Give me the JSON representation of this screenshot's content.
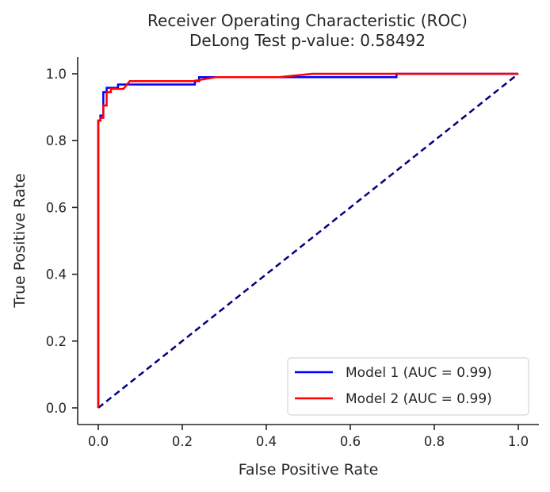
{
  "chart_data": {
    "type": "line",
    "title": "Receiver Operating Characteristic (ROC)",
    "subtitle": "DeLong Test p-value: 0.58492",
    "xlabel": "False Positive Rate",
    "ylabel": "True Positive Rate",
    "xlim": [
      -0.05,
      1.05
    ],
    "ylim": [
      -0.05,
      1.05
    ],
    "xticks": [
      0.0,
      0.2,
      0.4,
      0.6,
      0.8,
      1.0
    ],
    "yticks": [
      0.0,
      0.2,
      0.4,
      0.6,
      0.8,
      1.0
    ],
    "xtick_labels": [
      "0.0",
      "0.2",
      "0.4",
      "0.6",
      "0.8",
      "1.0"
    ],
    "ytick_labels": [
      "0.0",
      "0.2",
      "0.4",
      "0.6",
      "0.8",
      "1.0"
    ],
    "grid": false,
    "legend_position": "lower-right",
    "series": [
      {
        "name": "Model 1 (AUC = 0.99)",
        "color": "#0000ff",
        "points": [
          [
            0,
            0
          ],
          [
            0,
            0.86
          ],
          [
            0.005,
            0.86
          ],
          [
            0.005,
            0.875
          ],
          [
            0.012,
            0.875
          ],
          [
            0.012,
            0.945
          ],
          [
            0.02,
            0.945
          ],
          [
            0.02,
            0.958
          ],
          [
            0.047,
            0.958
          ],
          [
            0.047,
            0.968
          ],
          [
            0.23,
            0.968
          ],
          [
            0.23,
            0.978
          ],
          [
            0.24,
            0.978
          ],
          [
            0.24,
            0.99
          ],
          [
            0.71,
            0.99
          ],
          [
            0.71,
            1.0
          ],
          [
            1.0,
            1.0
          ]
        ]
      },
      {
        "name": "Model 2 (AUC = 0.99)",
        "color": "#ff0000",
        "points": [
          [
            0,
            0
          ],
          [
            0,
            0.86
          ],
          [
            0.005,
            0.86
          ],
          [
            0.005,
            0.868
          ],
          [
            0.012,
            0.868
          ],
          [
            0.012,
            0.905
          ],
          [
            0.02,
            0.905
          ],
          [
            0.02,
            0.945
          ],
          [
            0.03,
            0.945
          ],
          [
            0.03,
            0.955
          ],
          [
            0.06,
            0.955
          ],
          [
            0.075,
            0.978
          ],
          [
            0.225,
            0.978
          ],
          [
            0.28,
            0.99
          ],
          [
            0.43,
            0.99
          ],
          [
            0.51,
            1.0
          ],
          [
            1.0,
            1.0
          ]
        ]
      }
    ],
    "reference_line": {
      "color": "#000080",
      "style": "dashed",
      "points": [
        [
          0,
          0
        ],
        [
          1,
          1
        ]
      ]
    }
  }
}
